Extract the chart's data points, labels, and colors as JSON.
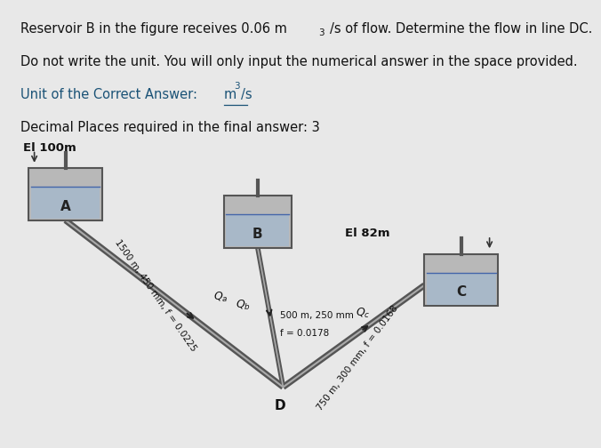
{
  "bg_color": "#e8e8e8",
  "text_bg_color": "#ffffff",
  "line1": "Reservoir B in the figure receives 0.06 m³/s of flow. Determine the flow in line DC.",
  "line2": "Do not write the unit. You will only input the numerical answer in the space provided.",
  "line3_prefix": "Unit of the Correct Answer: ",
  "line3_unit": "m³/s",
  "line4": "Decimal Places required in the final answer: 3",
  "elev_A": "El 100m",
  "elev_C": "El 82m",
  "label_A": "A",
  "label_B": "B",
  "label_C": "C",
  "label_D": "D",
  "pipe_AD_label": "1500 m, 450 mm, f = 0.0225",
  "pipe_BD_label1": "500 m, 250 mm",
  "pipe_BD_label2": "f = 0.0178",
  "pipe_DC_label": "750 m, 300 mm, f = 0.0168",
  "diagram_bg": "#cccccc",
  "reservoir_color": "#b8b8b8",
  "water_color": "#a8b8c8",
  "pipe_color": "#555555",
  "pipe_inner_color": "#aaaaaa",
  "text_color_black": "#111111",
  "text_color_blue": "#1a5276",
  "arrow_color": "#222222"
}
